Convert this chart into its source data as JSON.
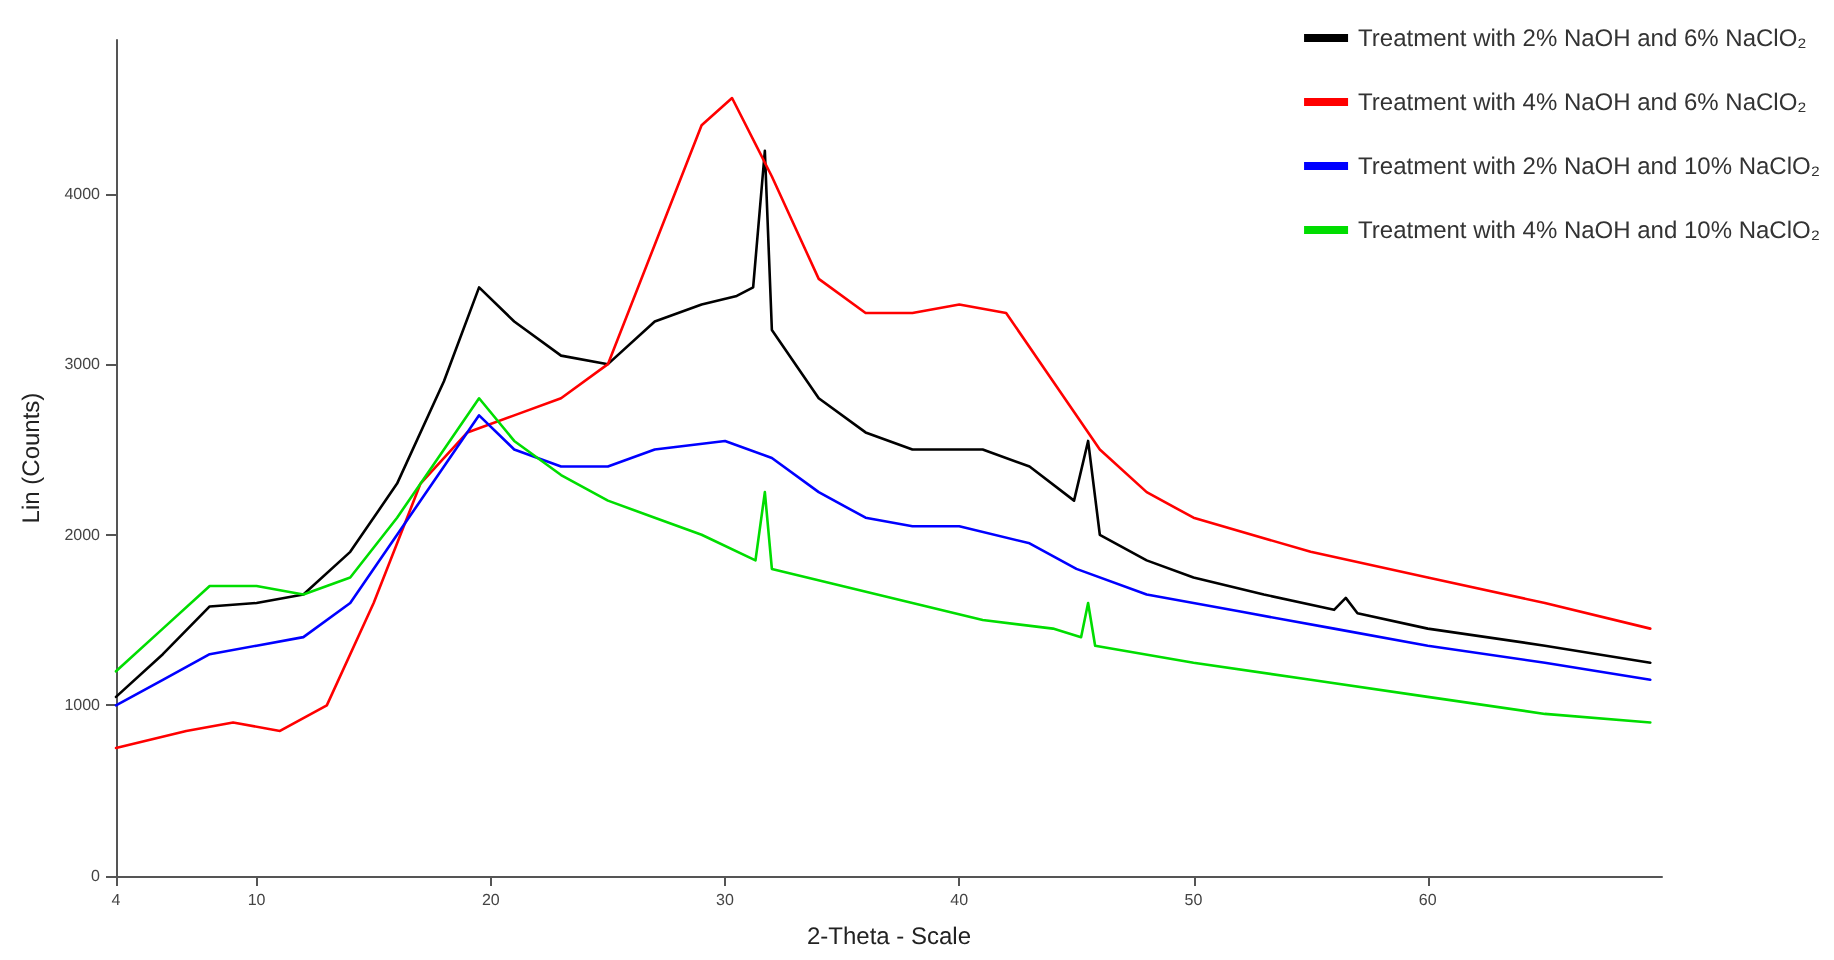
{
  "chart_data": {
    "type": "line",
    "xlabel": "2-Theta - Scale",
    "ylabel": "Lin (Counts)",
    "xlim": [
      4,
      70
    ],
    "xticks": [
      4,
      10,
      20,
      30,
      40,
      50,
      60
    ],
    "ylim": [
      0,
      4900
    ],
    "yticks": [
      0,
      1000,
      2000,
      3000,
      4000
    ],
    "grid": false,
    "legend": "top right",
    "marker": "none",
    "line_style": "solid",
    "series": [
      {
        "name": "Treatment with 2% NaOH and 6% NaClO₂",
        "color": "#000000",
        "x": [
          4,
          6,
          8,
          10,
          12,
          14,
          16,
          18,
          19.5,
          21,
          23,
          25,
          27,
          29,
          30.5,
          31.2,
          31.7,
          32,
          34,
          36,
          38,
          41,
          43,
          44.9,
          45.5,
          46,
          48,
          50,
          53,
          56,
          56.5,
          57,
          60,
          65,
          69.5
        ],
        "values": [
          1050,
          1300,
          1580,
          1600,
          1650,
          1900,
          2300,
          2900,
          3450,
          3250,
          3050,
          3000,
          3250,
          3350,
          3400,
          3450,
          4250,
          3200,
          2800,
          2600,
          2500,
          2500,
          2400,
          2200,
          2550,
          2000,
          1850,
          1750,
          1650,
          1560,
          1630,
          1540,
          1450,
          1350,
          1250
        ]
      },
      {
        "name": "Treatment with 4% NaOH and 6% NaClO₂",
        "color": "#ff0000",
        "x": [
          4,
          7,
          9,
          11,
          13,
          15,
          17,
          19,
          21,
          23,
          25,
          27,
          29,
          30.3,
          32,
          34,
          36,
          38,
          40,
          42,
          44,
          46,
          48,
          50,
          55,
          60,
          65,
          69.5
        ],
        "values": [
          750,
          850,
          900,
          850,
          1000,
          1600,
          2300,
          2600,
          2700,
          2800,
          3000,
          3700,
          4400,
          4560,
          4100,
          3500,
          3300,
          3300,
          3350,
          3300,
          2900,
          2500,
          2250,
          2100,
          1900,
          1750,
          1600,
          1450
        ]
      },
      {
        "name": "Treatment with 2% NaOH and 10% NaClO₂",
        "color": "#0000ff",
        "x": [
          4,
          6,
          8,
          10,
          12,
          14,
          16,
          18,
          19.5,
          21,
          23,
          25,
          27,
          30,
          32,
          34,
          36,
          38,
          40,
          43,
          45,
          48,
          52,
          56,
          60,
          65,
          69.5
        ],
        "values": [
          1000,
          1150,
          1300,
          1350,
          1400,
          1600,
          2000,
          2400,
          2700,
          2500,
          2400,
          2400,
          2500,
          2550,
          2450,
          2250,
          2100,
          2050,
          2050,
          1950,
          1800,
          1650,
          1550,
          1450,
          1350,
          1250,
          1150
        ]
      },
      {
        "name": "Treatment with 4% NaOH and 10% NaClO₂",
        "color": "#00dd00",
        "x": [
          4,
          6,
          8,
          10,
          12,
          14,
          16,
          18,
          19.5,
          21,
          23,
          25,
          27,
          29,
          31.3,
          31.7,
          32,
          35,
          38,
          41,
          44,
          45.2,
          45.5,
          45.8,
          50,
          55,
          60,
          65,
          69.5
        ],
        "values": [
          1200,
          1450,
          1700,
          1700,
          1650,
          1750,
          2100,
          2500,
          2800,
          2550,
          2350,
          2200,
          2100,
          2000,
          1850,
          2250,
          1800,
          1700,
          1600,
          1500,
          1450,
          1400,
          1600,
          1350,
          1250,
          1150,
          1050,
          950,
          900
        ]
      }
    ]
  }
}
